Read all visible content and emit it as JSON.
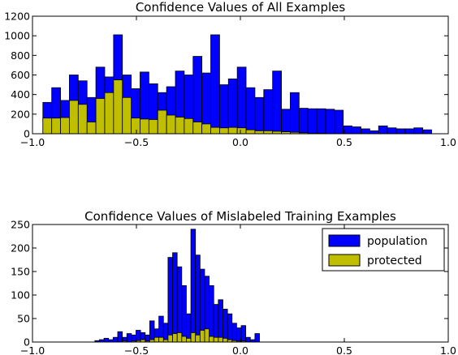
{
  "colors": {
    "population": "#0000ff",
    "protected": "#bfbf00",
    "edge": "#000000"
  },
  "chart_data": [
    {
      "type": "bar",
      "subtype": "histogram",
      "title": "Confidence Values of All Examples",
      "xlabel": "",
      "ylabel": "",
      "xlim": [
        -1.0,
        1.0
      ],
      "ylim": [
        0,
        1200
      ],
      "xticks": [
        "−1.0",
        "−0.5",
        "0.0",
        "0.5",
        "1.0"
      ],
      "yticks": [
        "0",
        "200",
        "400",
        "600",
        "800",
        "1000",
        "1200"
      ],
      "bin_start": -0.95,
      "bin_width": 0.0425,
      "legend": null,
      "series": [
        {
          "key": "population",
          "values": [
            320,
            470,
            340,
            600,
            540,
            370,
            680,
            580,
            1010,
            600,
            460,
            630,
            510,
            420,
            480,
            640,
            600,
            790,
            620,
            1010,
            500,
            560,
            680,
            470,
            370,
            450,
            640,
            250,
            420,
            260,
            255,
            255,
            250,
            240,
            80,
            70,
            50,
            30,
            80,
            60,
            50,
            50,
            60,
            40
          ]
        },
        {
          "key": "protected",
          "values": [
            160,
            160,
            165,
            340,
            300,
            120,
            360,
            420,
            550,
            370,
            160,
            150,
            145,
            240,
            190,
            170,
            155,
            120,
            100,
            65,
            60,
            65,
            60,
            40,
            30,
            30,
            25,
            20,
            15,
            10,
            5,
            5,
            0,
            0,
            0,
            0,
            0,
            0,
            0,
            0,
            0,
            0,
            0,
            0
          ]
        }
      ]
    },
    {
      "type": "bar",
      "subtype": "histogram",
      "title": "Confidence Values of Mislabeled Training Examples",
      "xlabel": "",
      "ylabel": "",
      "xlim": [
        -1.0,
        1.0
      ],
      "ylim": [
        0,
        250
      ],
      "xticks": [
        "−1.0",
        "−0.5",
        "0.0",
        "0.5",
        "1.0"
      ],
      "yticks": [
        "0",
        "50",
        "100",
        "150",
        "200",
        "250"
      ],
      "bin_start": -0.7,
      "bin_width": 0.022,
      "legend": {
        "placement": "top-right",
        "entries": [
          {
            "key": "population",
            "label": "population"
          },
          {
            "key": "protected",
            "label": "protected"
          }
        ]
      },
      "series": [
        {
          "key": "population",
          "values": [
            3,
            5,
            8,
            5,
            10,
            22,
            10,
            18,
            15,
            25,
            20,
            15,
            45,
            28,
            55,
            40,
            180,
            190,
            160,
            120,
            60,
            240,
            185,
            155,
            140,
            120,
            80,
            90,
            70,
            60,
            40,
            30,
            35,
            10,
            5,
            18
          ]
        },
        {
          "key": "protected",
          "values": [
            0,
            0,
            0,
            0,
            0,
            0,
            2,
            0,
            2,
            3,
            5,
            2,
            5,
            10,
            10,
            5,
            15,
            18,
            20,
            12,
            8,
            20,
            15,
            25,
            28,
            12,
            10,
            10,
            8,
            5,
            3,
            2,
            2,
            0,
            0,
            0
          ]
        }
      ]
    }
  ]
}
